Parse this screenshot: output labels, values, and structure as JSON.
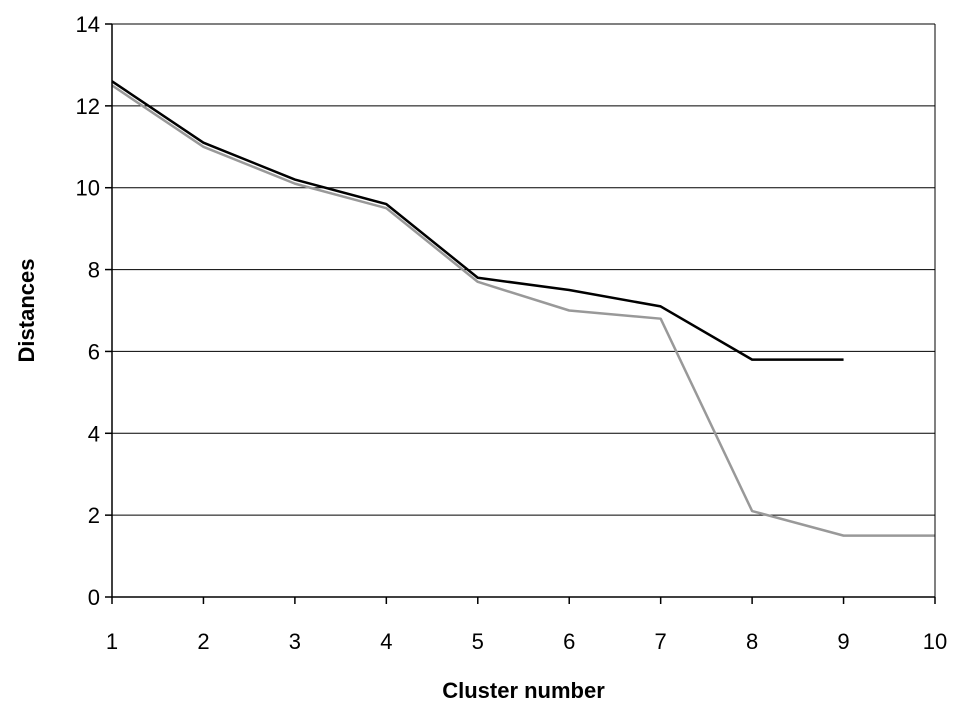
{
  "chart_data": {
    "type": "line",
    "xlabel": "Cluster number",
    "ylabel": "Distances",
    "xlim": [
      1,
      10
    ],
    "ylim": [
      0,
      14
    ],
    "x_ticks": [
      1,
      2,
      3,
      4,
      5,
      6,
      7,
      8,
      9,
      10
    ],
    "y_ticks": [
      0,
      2,
      4,
      6,
      8,
      10,
      12,
      14
    ],
    "grid": "horizontal",
    "legend": "none",
    "series": [
      {
        "color": "#000000",
        "x": [
          1,
          2,
          3,
          4,
          5,
          6,
          7,
          8,
          9
        ],
        "values": [
          12.6,
          11.1,
          10.2,
          9.6,
          7.8,
          7.5,
          7.1,
          5.8,
          5.8
        ]
      },
      {
        "color": "#999999",
        "x": [
          1,
          2,
          3,
          4,
          5,
          6,
          7,
          8,
          9,
          10
        ],
        "values": [
          12.5,
          11.0,
          10.1,
          9.5,
          7.7,
          7.0,
          6.8,
          2.1,
          1.5,
          1.5
        ]
      }
    ]
  }
}
